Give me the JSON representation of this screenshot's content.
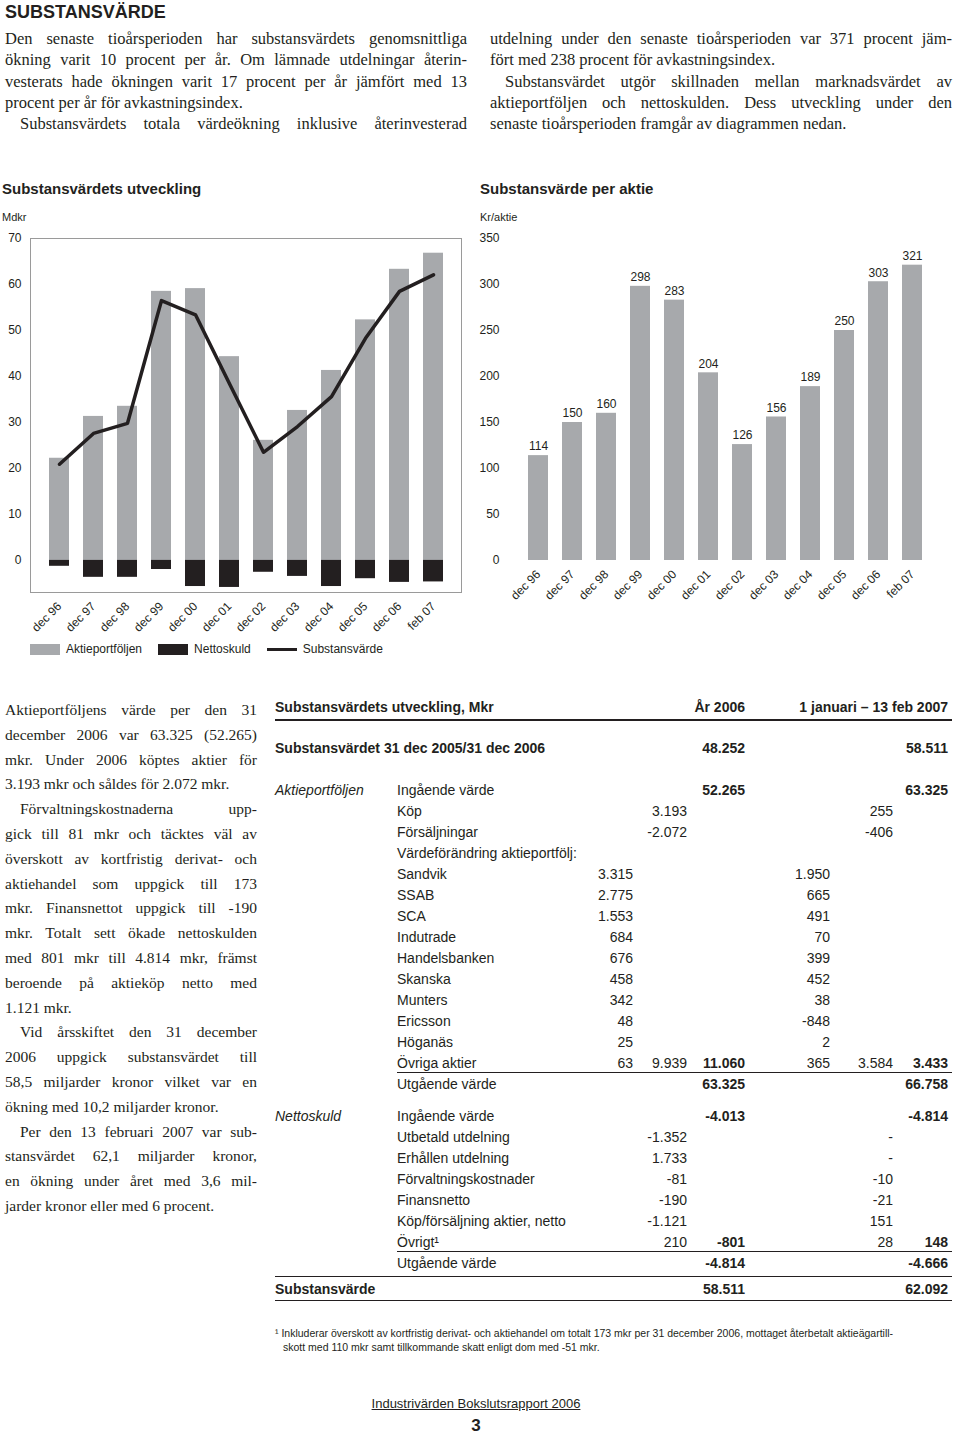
{
  "header": {
    "title": "SUBSTANSVÄRDE"
  },
  "intro": {
    "columns": [
      [
        [
          "Den senaste tioårsperioden har substansvärdets genomsnittliga",
          "ökning varit 10 procent per år. Om lämnade utdelningar återin-",
          "vesterats hade ökningen varit 17 procent per år jämfört med 13",
          "procent per år för avkastningsindex."
        ],
        [
          "Substansvärdets totala värdeökning inklusive återinvesterad"
        ]
      ],
      [
        [
          "utdelning under den senaste tioårsperioden var 371 procent jäm-",
          "fört med 238 procent för avkastningsindex."
        ],
        [
          "Substansvärdet utgör skillnaden mellan marknadsvärdet av",
          "aktieportföljen och nettoskulden. Dess utveckling under den",
          "senaste tioårsperioden framgår av diagrammen nedan."
        ]
      ]
    ]
  },
  "chart_data": [
    {
      "type": "bar",
      "title": "Substansvärdets utveckling",
      "ylabel": "Mdkr",
      "categories": [
        "dec 96",
        "dec 97",
        "dec 98",
        "dec 99",
        "dec 00",
        "dec 01",
        "dec 02",
        "dec 03",
        "dec 04",
        "dec 05",
        "dec 06",
        "feb 07"
      ],
      "series": [
        {
          "name": "Aktieportföljen",
          "type": "bar",
          "color": "#a7a9ac",
          "values": [
            22.2,
            31.3,
            33.5,
            58.5,
            59.1,
            44.3,
            26.1,
            32.6,
            41.3,
            52.3,
            63.3,
            66.8
          ]
        },
        {
          "name": "Nettoskuld",
          "type": "bar",
          "color": "#231f20",
          "values": [
            -1.3,
            -3.7,
            -3.7,
            -2.0,
            -5.7,
            -5.9,
            -2.6,
            -3.5,
            -5.7,
            -4.0,
            -4.8,
            -4.7
          ]
        },
        {
          "name": "Substansvärde",
          "type": "line",
          "color": "#231f20",
          "values": [
            20.9,
            27.6,
            29.8,
            56.5,
            53.4,
            38.4,
            23.5,
            29.1,
            35.6,
            48.3,
            58.5,
            62.1
          ]
        }
      ],
      "ylim": [
        -7,
        70
      ],
      "yticks": [
        0,
        10,
        20,
        30,
        40,
        50,
        60,
        70
      ],
      "grid": false,
      "legend": "bottom"
    },
    {
      "type": "bar",
      "title": "Substansvärde per aktie",
      "ylabel": "Kr/aktie",
      "categories": [
        "dec 96",
        "dec 97",
        "dec 98",
        "dec 99",
        "dec 00",
        "dec 01",
        "dec 02",
        "dec 03",
        "dec 04",
        "dec 05",
        "dec 06",
        "feb 07"
      ],
      "values": [
        114,
        150,
        160,
        298,
        283,
        204,
        126,
        156,
        189,
        250,
        303,
        321
      ],
      "color": "#a7a9ac",
      "ylim": [
        0,
        350
      ],
      "yticks": [
        0,
        50,
        100,
        150,
        200,
        250,
        300,
        350
      ],
      "grid": false,
      "data_labels": true
    }
  ],
  "body": [
    [
      "Aktieportföljens värde per den 31",
      "december 2006 var 63.325 (52.265)",
      "mkr. Under 2006 köptes aktier för",
      "3.193 mkr och såldes för 2.072 mkr."
    ],
    [
      "Förvaltningskostnaderna upp-",
      "gick till 81 mkr och täcktes väl av",
      "överskott av kortfristig derivat- och",
      "aktiehandel som uppgick till 173",
      "mkr. Finansnettot uppgick till -190",
      "mkr. Totalt sett ökade nettoskulden",
      "med 801 mkr till 4.814 mkr, främst",
      "beroende på aktieköp netto med",
      "1.121 mkr."
    ],
    [
      "Vid årsskiftet den 31 december",
      "2006 uppgick substansvärdet till",
      "58,5 miljarder kronor vilket var en",
      "ökning med 10,2 miljarder kronor."
    ],
    [
      "Per den 13 februari 2007 var sub-",
      "stansvärdet 62,1 miljarder kronor,",
      "en ökning under året med 3,6 mil-",
      "jarder kronor eller med 6 procent."
    ]
  ],
  "table": {
    "header": {
      "title": "Substansvärdets utveckling, Mkr",
      "columns": [
        "År 2006",
        "1 januari – 13 feb 2007"
      ]
    },
    "sections": [
      {
        "rows": [
          {
            "label": "Substansvärdet 31 dec 2005/31 dec 2006",
            "cells": [
              null,
              null,
              "48.252",
              null,
              null,
              "58.511"
            ]
          }
        ]
      },
      {
        "group": "Aktieportföljen",
        "rows": [
          {
            "label": "Ingående värde",
            "cells": [
              null,
              null,
              "52.265",
              null,
              null,
              "63.325"
            ]
          },
          {
            "label": "Köp",
            "cells": [
              null,
              "3.193",
              null,
              null,
              "255",
              null
            ]
          },
          {
            "label": "Försäljningar",
            "cells": [
              null,
              "-2.072",
              null,
              null,
              "-406",
              null
            ]
          },
          {
            "label": "Värdeförändring aktieportfölj:"
          },
          {
            "label": "Sandvik",
            "cells": [
              "3.315",
              null,
              null,
              "1.950",
              null,
              null
            ]
          },
          {
            "label": "SSAB",
            "cells": [
              "2.775",
              null,
              null,
              "665",
              null,
              null
            ]
          },
          {
            "label": "SCA",
            "cells": [
              "1.553",
              null,
              null,
              "491",
              null,
              null
            ]
          },
          {
            "label": "Indutrade",
            "cells": [
              "684",
              null,
              null,
              "70",
              null,
              null
            ]
          },
          {
            "label": "Handelsbanken",
            "cells": [
              "676",
              null,
              null,
              "399",
              null,
              null
            ]
          },
          {
            "label": "Skanska",
            "cells": [
              "458",
              null,
              null,
              "452",
              null,
              null
            ]
          },
          {
            "label": "Munters",
            "cells": [
              "342",
              null,
              null,
              "38",
              null,
              null
            ]
          },
          {
            "label": "Ericsson",
            "cells": [
              "48",
              null,
              null,
              "-848",
              null,
              null
            ]
          },
          {
            "label": "Höganäs",
            "cells": [
              "25",
              null,
              null,
              "2",
              null,
              null
            ]
          },
          {
            "label": "Övriga aktier",
            "cells": [
              "63",
              "9.939",
              "11.060",
              "365",
              "3.584",
              "3.433"
            ]
          },
          {
            "label": "Utgående värde",
            "cells": [
              null,
              null,
              "63.325",
              null,
              null,
              "66.758"
            ]
          }
        ]
      },
      {
        "group": "Nettoskuld",
        "rows": [
          {
            "label": "Ingående värde",
            "cells": [
              null,
              null,
              "-4.013",
              null,
              null,
              "-4.814"
            ]
          },
          {
            "label": "Utbetald utdelning",
            "cells": [
              null,
              "-1.352",
              null,
              null,
              "-",
              null
            ]
          },
          {
            "label": "Erhållen utdelning",
            "cells": [
              null,
              "1.733",
              null,
              null,
              "-",
              null
            ]
          },
          {
            "label": "Förvaltningskostnader",
            "cells": [
              null,
              "-81",
              null,
              null,
              "-10",
              null
            ]
          },
          {
            "label": "Finansnetto",
            "cells": [
              null,
              "-190",
              null,
              null,
              "-21",
              null
            ]
          },
          {
            "label": "Köp/försäljning aktier, netto",
            "cells": [
              null,
              "-1.121",
              null,
              null,
              "151",
              null
            ]
          },
          {
            "label": "Övrigt¹",
            "cells": [
              null,
              "210",
              "-801",
              null,
              "28",
              "148"
            ]
          },
          {
            "label": "Utgående värde",
            "cells": [
              null,
              null,
              "-4.814",
              null,
              null,
              "-4.666"
            ]
          }
        ]
      },
      {
        "group": "Substansvärde",
        "rows": [
          {
            "cells": [
              null,
              null,
              "58.511",
              null,
              null,
              "62.092"
            ]
          }
        ]
      }
    ]
  },
  "footnote": [
    "¹ Inkluderar överskott av kortfristig derivat- och aktiehandel om totalt 173 mkr per 31 december 2006, mottaget återbetalt aktieägartill-",
    "skott med 110 mkr samt tillkommande skatt enligt dom med -51 mkr."
  ],
  "footer": {
    "publication": "Industrivärden Bokslutsrapport 2006",
    "page": "3"
  }
}
